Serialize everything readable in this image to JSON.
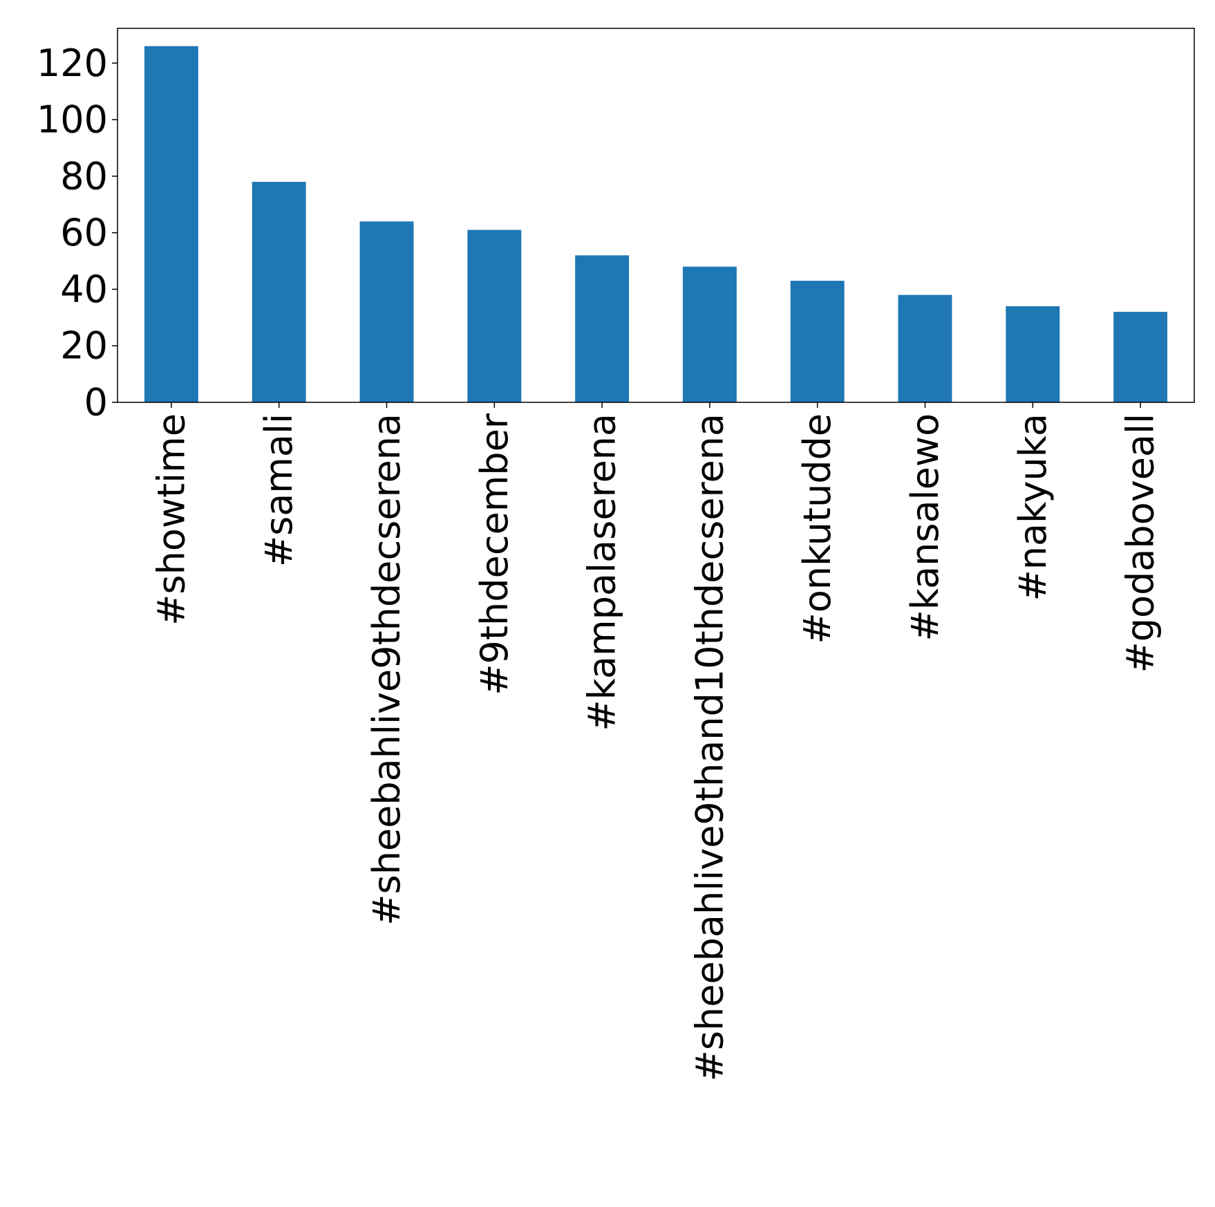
{
  "chart_data": {
    "type": "bar",
    "categories": [
      "#showtime",
      "#samali",
      "#sheebahlive9thdecserena",
      "#9thdecember",
      "#kampalaserena",
      "#sheebahlive9thand10thdecserena",
      "#onkutudde",
      "#kansalewo",
      "#nakyuka",
      "#godaboveall"
    ],
    "values": [
      126,
      78,
      64,
      61,
      52,
      48,
      43,
      38,
      34,
      32
    ],
    "color": "#1f77b4",
    "ylim": [
      0,
      132.3
    ],
    "yticks": [
      0,
      20,
      40,
      60,
      80,
      100,
      120
    ],
    "grid": false
  }
}
